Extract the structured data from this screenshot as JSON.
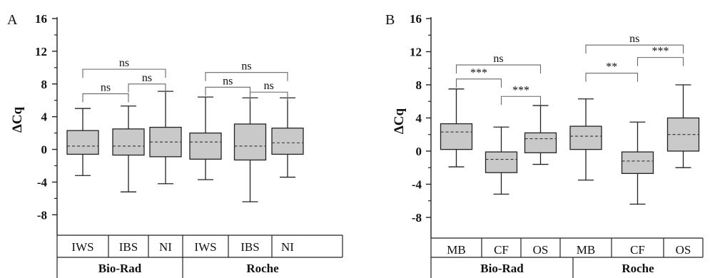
{
  "chart_data": [
    {
      "panel_label": "A",
      "type": "box",
      "ylabel": "ΔCq",
      "ylim": [
        -10.5,
        16
      ],
      "yticks": [
        -8,
        -4,
        0,
        4,
        8,
        12,
        16
      ],
      "ytick_labels": [
        "-8",
        "-4",
        "0",
        "4",
        "8",
        "12",
        "16"
      ],
      "groups": [
        {
          "name": "Bio-Rad",
          "categories": [
            "IWS",
            "IBS",
            "NI"
          ]
        },
        {
          "name": "Roche",
          "categories": [
            "IWS",
            "IBS",
            "NI"
          ]
        }
      ],
      "boxes": [
        {
          "group": "Bio-Rad",
          "category": "IWS",
          "min": -3.2,
          "q1": -0.6,
          "mean": 0.4,
          "q3": 2.3,
          "max": 5.0
        },
        {
          "group": "Bio-Rad",
          "category": "IBS",
          "min": -5.2,
          "q1": -0.7,
          "mean": 0.4,
          "q3": 2.5,
          "max": 5.3
        },
        {
          "group": "Bio-Rad",
          "category": "NI",
          "min": -4.2,
          "q1": -0.9,
          "mean": 0.9,
          "q3": 2.7,
          "max": 7.1
        },
        {
          "group": "Roche",
          "category": "IWS",
          "min": -3.7,
          "q1": -1.2,
          "mean": 0.9,
          "q3": 2.0,
          "max": 6.4
        },
        {
          "group": "Roche",
          "category": "IBS",
          "min": -6.4,
          "q1": -1.3,
          "mean": 0.4,
          "q3": 3.1,
          "max": 6.3
        },
        {
          "group": "Roche",
          "category": "NI",
          "min": -3.4,
          "q1": -0.6,
          "mean": 0.8,
          "q3": 2.6,
          "max": 6.3
        }
      ],
      "significance": [
        {
          "from": 0,
          "to": 1,
          "label": "ns",
          "y": 6.8
        },
        {
          "from": 1,
          "to": 2,
          "label": "ns",
          "y": 8.0
        },
        {
          "from": 0,
          "to": 2,
          "label": "ns",
          "y": 9.8
        },
        {
          "from": 3,
          "to": 4,
          "label": "ns",
          "y": 7.6
        },
        {
          "from": 4,
          "to": 5,
          "label": "ns",
          "y": 7.0
        },
        {
          "from": 3,
          "to": 5,
          "label": "ns",
          "y": 9.4
        }
      ]
    },
    {
      "panel_label": "B",
      "type": "box",
      "ylabel": "ΔCq",
      "ylim": [
        -10.5,
        16
      ],
      "yticks": [
        -8,
        -4,
        0,
        4,
        8,
        12,
        16
      ],
      "ytick_labels": [
        "-8",
        "-4",
        "0",
        "4",
        "8",
        "12",
        "16"
      ],
      "groups": [
        {
          "name": "Bio-Rad",
          "categories": [
            "MB",
            "CF",
            "OS"
          ]
        },
        {
          "name": "Roche",
          "categories": [
            "MB",
            "CF",
            "OS"
          ]
        }
      ],
      "boxes": [
        {
          "group": "Bio-Rad",
          "category": "MB",
          "min": -1.9,
          "q1": 0.2,
          "mean": 2.3,
          "q3": 3.3,
          "max": 7.5
        },
        {
          "group": "Bio-Rad",
          "category": "CF",
          "min": -5.2,
          "q1": -2.6,
          "mean": -1.0,
          "q3": -0.1,
          "max": 2.9
        },
        {
          "group": "Bio-Rad",
          "category": "OS",
          "min": -1.6,
          "q1": -0.2,
          "mean": 1.5,
          "q3": 2.2,
          "max": 5.5
        },
        {
          "group": "Roche",
          "category": "MB",
          "min": -3.5,
          "q1": 0.2,
          "mean": 1.8,
          "q3": 3.0,
          "max": 6.3
        },
        {
          "group": "Roche",
          "category": "CF",
          "min": -6.4,
          "q1": -2.7,
          "mean": -1.2,
          "q3": -0.1,
          "max": 3.5
        },
        {
          "group": "Roche",
          "category": "OS",
          "min": -2.0,
          "q1": 0.0,
          "mean": 2.0,
          "q3": 4.0,
          "max": 8.0
        }
      ],
      "significance": [
        {
          "from": 0,
          "to": 1,
          "label": "***",
          "y": 8.7
        },
        {
          "from": 1,
          "to": 2,
          "label": "***",
          "y": 6.6
        },
        {
          "from": 0,
          "to": 2,
          "label": "ns",
          "y": 10.4
        },
        {
          "from": 3,
          "to": 4,
          "label": "**",
          "y": 9.4
        },
        {
          "from": 4,
          "to": 5,
          "label": "***",
          "y": 11.3
        },
        {
          "from": 3,
          "to": 5,
          "label": "ns",
          "y": 12.8
        }
      ]
    }
  ]
}
